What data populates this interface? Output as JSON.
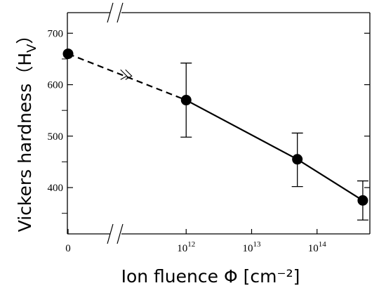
{
  "chart_data": {
    "type": "scatter",
    "xlabel": "Ion fluence Φ [cm⁻²]",
    "ylabel": "Vickers hardness（H",
    "ylabel_sub": "V",
    "ylabel_close": "）",
    "x_scale": "broken: linear zero segment + log",
    "x_ticks": [
      {
        "label": "0",
        "value": 0
      },
      {
        "base": "10",
        "exp": "12",
        "value": 1000000000000.0
      },
      {
        "base": "10",
        "exp": "13",
        "value": 10000000000000.0
      },
      {
        "base": "10",
        "exp": "14",
        "value": 100000000000000.0
      }
    ],
    "y_ticks": [
      400,
      500,
      600,
      700
    ],
    "ylim": [
      310,
      740
    ],
    "xlim_log": [
      100000000000.0,
      1000000000000000.0
    ],
    "grid": false,
    "axis_breaks": true,
    "series": [
      {
        "points": [
          {
            "x": 0,
            "y": 660
          },
          {
            "x": 1000000000000.0,
            "y": 570,
            "err_low": 498,
            "err_high": 642
          },
          {
            "x": 50000000000000.0,
            "y": 455,
            "err_low": 402,
            "err_high": 506
          },
          {
            "x": 500000000000000.0,
            "y": 375,
            "err_low": 337,
            "err_high": 413
          }
        ],
        "extrapolated_segment": "dashed from 0 to 1e12",
        "fit_segment": "solid"
      }
    ]
  }
}
